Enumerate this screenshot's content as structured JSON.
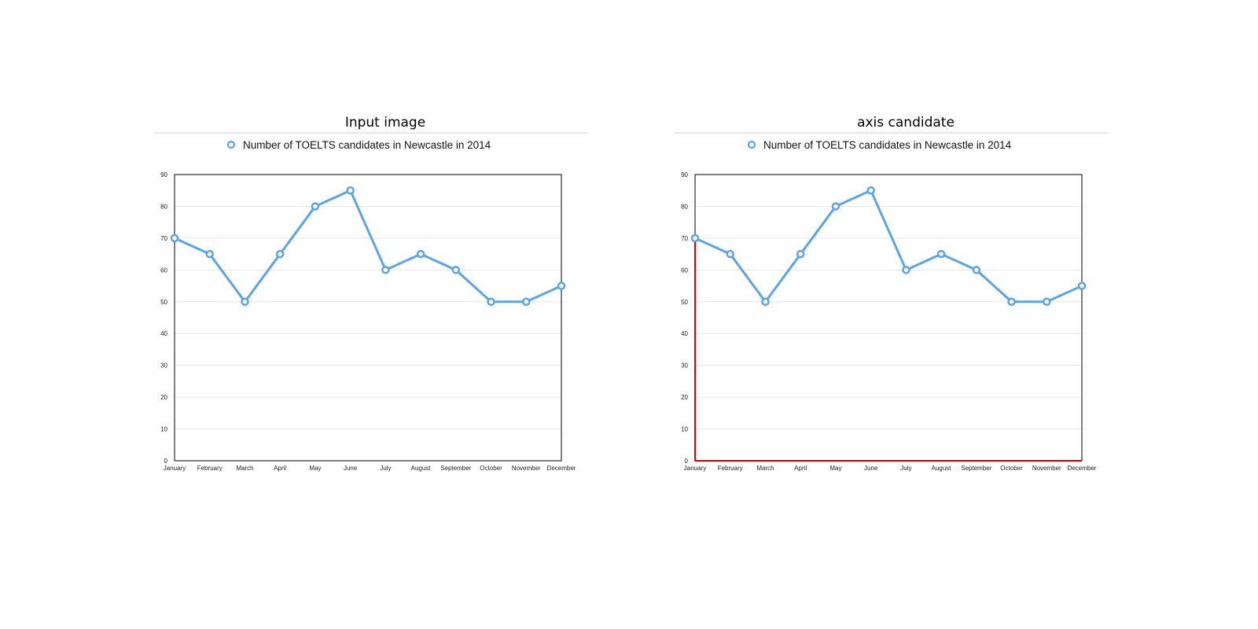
{
  "panels": [
    {
      "title": "Input image",
      "highlight_axes": false
    },
    {
      "title": "axis candidate",
      "highlight_axes": true
    }
  ],
  "colors": {
    "series": "#5aa5e8",
    "axis_highlight": "#dd0000",
    "grid": "#e6e6e6",
    "frame": "#000000"
  },
  "chart_data": {
    "type": "line",
    "categories": [
      "January",
      "February",
      "March",
      "April",
      "May",
      "June",
      "July",
      "August",
      "September",
      "October",
      "November",
      "December"
    ],
    "series": [
      {
        "name": "Number of TOELTS candidates in Newcastle in 2014",
        "values": [
          70,
          65,
          50,
          65,
          80,
          85,
          60,
          65,
          60,
          50,
          50,
          55
        ]
      }
    ],
    "yticks": [
      0,
      10,
      20,
      30,
      40,
      50,
      60,
      70,
      80,
      90
    ],
    "ylim": [
      0,
      90
    ],
    "grid": true,
    "legend": "top-center"
  }
}
